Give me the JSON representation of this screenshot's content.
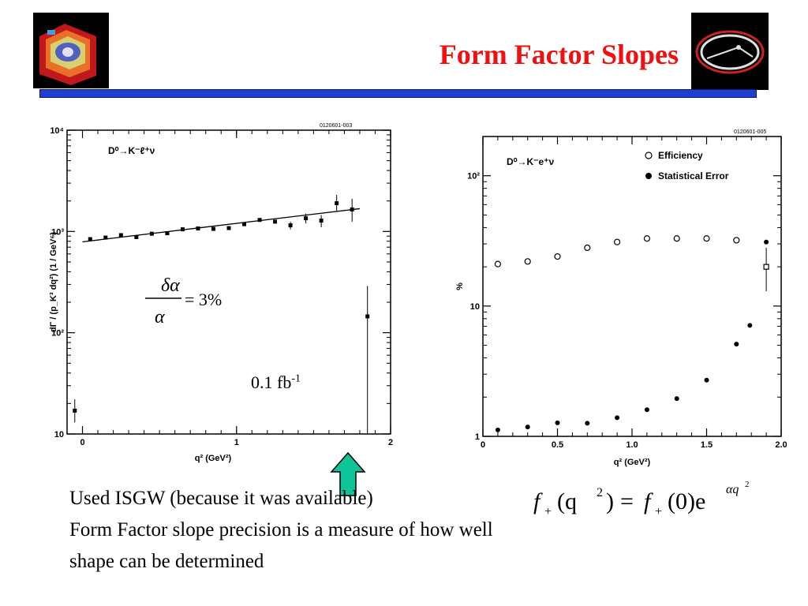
{
  "title": "Form Factor Slopes",
  "colors": {
    "title": "#ee1111",
    "bar": "#1f3fd0",
    "arrow": "#10c49a"
  },
  "logos": {
    "left": "detector-logo",
    "right": "ring-logo"
  },
  "annotations": {
    "lumi_value": "0.1 fb",
    "lumi_exp": "-1",
    "frac_num": "δα",
    "frac_den": "α",
    "frac_rhs": "= 3%"
  },
  "formula": {
    "f": "f",
    "plus": "+",
    "lhs_arg_open": "(q",
    "lhs_arg_exp": "2",
    "lhs_arg_close": ")",
    "eq": "=",
    "rhs_zero": "(0)e",
    "rhs_exp": "αq",
    "rhs_exp2": "2"
  },
  "body": {
    "line1": "Used ISGW (because it was available)",
    "line2": "Form Factor slope  precision is a measure of how well",
    "line3": "shape can be determined"
  },
  "chart_data": [
    {
      "type": "scatter",
      "id_label": "0120601-003",
      "process_label": "D⁰→K⁻ℓ⁺ν",
      "xlabel": "q² (GeV²)",
      "ylabel": "dΓ / (p_K³ dq²) (1 / GeV⁶)",
      "xlim": [
        -0.1,
        2.0
      ],
      "ylim": [
        10,
        10000
      ],
      "yscale": "log",
      "xticks": [
        0,
        1,
        2
      ],
      "xtick_labels": [
        "0",
        "1",
        "2"
      ],
      "yticks": [
        10,
        100,
        1000,
        10000
      ],
      "ytick_labels": [
        "10",
        "10²",
        "10³",
        "10⁴"
      ],
      "points": [
        {
          "x": -0.05,
          "y": 17,
          "err": [
            13,
            22
          ]
        },
        {
          "x": 0.05,
          "y": 840
        },
        {
          "x": 0.15,
          "y": 870
        },
        {
          "x": 0.25,
          "y": 920
        },
        {
          "x": 0.35,
          "y": 880
        },
        {
          "x": 0.45,
          "y": 950
        },
        {
          "x": 0.55,
          "y": 960
        },
        {
          "x": 0.65,
          "y": 1050
        },
        {
          "x": 0.75,
          "y": 1070
        },
        {
          "x": 0.85,
          "y": 1060
        },
        {
          "x": 0.95,
          "y": 1080
        },
        {
          "x": 1.05,
          "y": 1180
        },
        {
          "x": 1.15,
          "y": 1300
        },
        {
          "x": 1.25,
          "y": 1250
        },
        {
          "x": 1.35,
          "y": 1150,
          "err": [
            1050,
            1250
          ]
        },
        {
          "x": 1.45,
          "y": 1350,
          "err": [
            1200,
            1500
          ]
        },
        {
          "x": 1.55,
          "y": 1280,
          "err": [
            1100,
            1450
          ]
        },
        {
          "x": 1.65,
          "y": 1900,
          "err": [
            1600,
            2300
          ]
        },
        {
          "x": 1.75,
          "y": 1650,
          "err": [
            1250,
            2100
          ]
        },
        {
          "x": 1.85,
          "y": 145,
          "err": [
            10,
            290
          ]
        }
      ],
      "fit_line": {
        "x": [
          0.0,
          1.8
        ],
        "y": [
          790,
          1680
        ]
      }
    },
    {
      "type": "scatter",
      "id_label": "0120601-005",
      "process_label": "D⁰→K⁻e⁺ν",
      "xlabel": "q² (GeV²)",
      "ylabel": "%",
      "xlim": [
        0,
        2.0
      ],
      "ylim": [
        1,
        200
      ],
      "yscale": "log",
      "xticks": [
        0,
        0.5,
        1.0,
        1.5,
        2.0
      ],
      "xtick_labels": [
        "0",
        "0.5",
        "1.0",
        "1.5",
        "2.0"
      ],
      "yticks": [
        1,
        10,
        100
      ],
      "ytick_labels": [
        "1",
        "10",
        "10²"
      ],
      "legend": [
        {
          "name": "Efficiency",
          "marker": "open-circle"
        },
        {
          "name": "Statistical Error",
          "marker": "filled-circle"
        }
      ],
      "legend_position": "top-right",
      "series": [
        {
          "name": "Efficiency",
          "x": [
            0.1,
            0.3,
            0.5,
            0.7,
            0.9,
            1.1,
            1.3,
            1.5,
            1.7,
            1.9
          ],
          "y": [
            21,
            22,
            24,
            28,
            31,
            33,
            33,
            33,
            32,
            20
          ],
          "err_last": [
            13,
            28
          ]
        },
        {
          "name": "Statistical Error",
          "x": [
            0.1,
            0.3,
            0.5,
            0.7,
            0.9,
            1.1,
            1.3,
            1.5,
            1.7,
            1.79,
            1.9
          ],
          "y": [
            1.12,
            1.18,
            1.27,
            1.26,
            1.39,
            1.6,
            1.95,
            2.7,
            5.1,
            7.1,
            31
          ]
        }
      ]
    }
  ]
}
